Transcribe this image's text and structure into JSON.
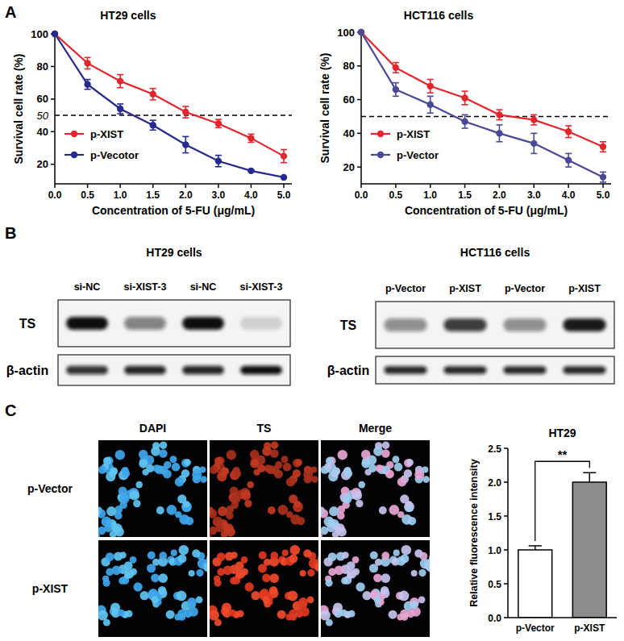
{
  "panel_labels": [
    "A",
    "B",
    "C"
  ],
  "chart_data": [
    {
      "type": "line",
      "title": "HT29 cells",
      "x_label": "Concentration of 5-FU (μg/mL)",
      "y_label": "Survival cell rate (%)",
      "categories": [
        "0.0",
        "0.5",
        "1.0",
        "1.5",
        "2.0",
        "3.0",
        "4.0",
        "5.0"
      ],
      "series": [
        {
          "name": "p-XIST",
          "color": "#e3262d",
          "marker": "circle",
          "values": [
            100,
            82,
            71,
            63,
            52,
            45,
            36,
            25
          ],
          "errors": [
            0,
            3.5,
            4,
            3.5,
            3.5,
            2.5,
            2.5,
            4
          ]
        },
        {
          "name": "p-Vecotor",
          "color": "#262a8c",
          "marker": "circle",
          "values": [
            100,
            69,
            54,
            44,
            32,
            22,
            16,
            12
          ],
          "errors": [
            0,
            3,
            3,
            3,
            5,
            3.5,
            0.5,
            0.5
          ]
        }
      ],
      "ylim": [
        8,
        100
      ],
      "yticks": [
        20,
        40,
        60,
        80,
        100
      ],
      "reference_line": {
        "value": 50,
        "label": "50"
      },
      "legend": "lower left",
      "grid": false
    },
    {
      "type": "line",
      "title": "HCT116 cells",
      "x_label": "Concentration of 5-FU (μg/mL)",
      "y_label": "Survival cell rate (%)",
      "categories": [
        "0.0",
        "0.5",
        "1.0",
        "1.5",
        "2.0",
        "3.0",
        "4.0",
        "5.0"
      ],
      "series": [
        {
          "name": "p-XIST",
          "color": "#e3262d",
          "marker": "circle",
          "values": [
            100,
            79,
            68,
            61,
            51,
            48,
            41,
            32
          ],
          "errors": [
            0,
            3,
            4,
            4,
            3,
            3,
            3.5,
            3
          ]
        },
        {
          "name": "p-Vector",
          "color": "#4a4996",
          "marker": "circle",
          "values": [
            100,
            66,
            57,
            47,
            40,
            34,
            24,
            14
          ],
          "errors": [
            0,
            4,
            5,
            4,
            5,
            6,
            4,
            3
          ]
        }
      ],
      "ylim": [
        10,
        100
      ],
      "yticks": [
        20,
        40,
        60,
        80,
        100
      ],
      "reference_line": {
        "value": 50
      },
      "legend": "lower left",
      "grid": false
    },
    {
      "type": "bar",
      "title": "HT29",
      "y_label": "Relative fluorescence intensity",
      "categories": [
        "p-Vector",
        "p-XIST"
      ],
      "values": [
        1.0,
        2.0
      ],
      "errors": [
        0.06,
        0.14
      ],
      "colors": [
        "#ffffff",
        "#8c8c8c"
      ],
      "ylim": [
        0,
        2.5
      ],
      "yticks": [
        {
          "value": 0,
          "label": "0.0"
        },
        {
          "value": 0.5,
          "label": "0.5"
        },
        {
          "value": 1,
          "label": "1.0"
        },
        {
          "value": 1.5,
          "label": "1.5"
        },
        {
          "value": 2,
          "label": "2.0"
        },
        {
          "value": 2.5,
          "label": "2.5"
        }
      ],
      "significance": "**",
      "grid": false
    }
  ],
  "blots": [
    {
      "title": "HT29 cells",
      "lanes": [
        "si-NC",
        "si-XIST-3",
        "si-NC",
        "si-XIST-3"
      ],
      "rows": [
        {
          "label": "TS",
          "intensity": [
            1.0,
            0.5,
            1.0,
            0.15
          ]
        },
        {
          "label": "β-actin",
          "intensity": [
            0.85,
            0.9,
            0.9,
            1.0
          ]
        }
      ]
    },
    {
      "title": "HCT116 cells",
      "lanes": [
        "p-Vector",
        "p-XIST",
        "p-Vector",
        "p-XIST"
      ],
      "rows": [
        {
          "label": "TS",
          "intensity": [
            0.45,
            0.8,
            0.45,
            0.95
          ]
        },
        {
          "label": "β-actin",
          "intensity": [
            0.9,
            0.9,
            0.9,
            0.9
          ]
        }
      ]
    }
  ],
  "images": {
    "columns": [
      "DAPI",
      "TS",
      "Merge"
    ],
    "rows": [
      "p-Vector",
      "p-XIST"
    ]
  }
}
